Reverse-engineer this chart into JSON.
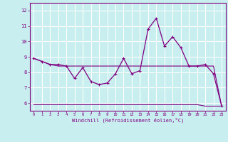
{
  "xlabel": "Windchill (Refroidissement éolien,°C)",
  "background_color": "#c8eef0",
  "line_color": "#800080",
  "grid_color": "#ffffff",
  "hours": [
    0,
    1,
    2,
    3,
    4,
    5,
    6,
    7,
    8,
    9,
    10,
    11,
    12,
    13,
    14,
    15,
    16,
    17,
    18,
    19,
    20,
    21,
    22,
    23
  ],
  "series1": [
    8.9,
    8.7,
    8.5,
    8.5,
    8.4,
    7.6,
    8.3,
    7.4,
    7.2,
    7.3,
    7.9,
    8.9,
    7.9,
    8.1,
    10.8,
    11.5,
    9.7,
    10.3,
    9.6,
    8.4,
    8.4,
    8.5,
    7.9,
    5.8
  ],
  "series2": [
    8.9,
    8.7,
    8.5,
    8.4,
    8.4,
    8.4,
    8.4,
    8.4,
    8.4,
    8.4,
    8.4,
    8.4,
    8.4,
    8.4,
    8.4,
    8.4,
    8.4,
    8.4,
    8.4,
    8.4,
    8.4,
    8.4,
    8.4,
    5.8
  ],
  "series3": [
    5.9,
    5.9,
    5.9,
    5.9,
    5.9,
    5.9,
    5.9,
    5.9,
    5.9,
    5.9,
    5.9,
    5.9,
    5.9,
    5.9,
    5.9,
    5.9,
    5.9,
    5.9,
    5.9,
    5.9,
    5.9,
    5.8,
    5.8,
    5.8
  ],
  "ylim": [
    5.5,
    12.5
  ],
  "yticks": [
    6,
    7,
    8,
    9,
    10,
    11,
    12
  ],
  "xlim": [
    -0.5,
    23.5
  ],
  "xticks": [
    0,
    1,
    2,
    3,
    4,
    5,
    6,
    7,
    8,
    9,
    10,
    11,
    12,
    13,
    14,
    15,
    16,
    17,
    18,
    19,
    20,
    21,
    22,
    23
  ]
}
